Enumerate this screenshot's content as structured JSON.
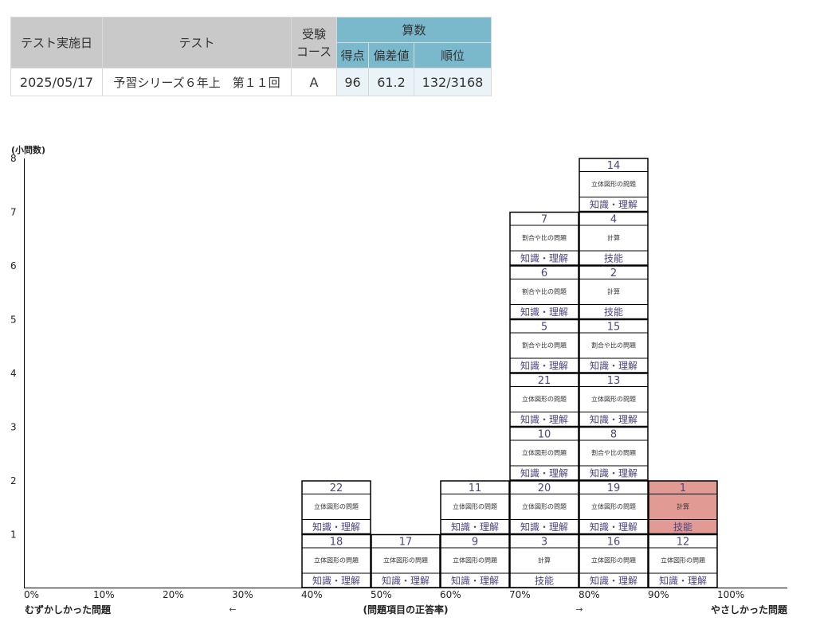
{
  "summary": {
    "headers": {
      "date": "テスト実施日",
      "test": "テスト",
      "course": "受験\nコース",
      "subject": "算数",
      "score": "得点",
      "deviation": "偏差値",
      "rank": "順位"
    },
    "row": {
      "date": "2025/05/17",
      "test": "予習シリーズ６年上　第１１回",
      "course": "A",
      "score": "96",
      "deviation": "61.2",
      "rank": "132/3168"
    }
  },
  "chart_data": {
    "type": "stacked-histogram",
    "ylabel": "(小問数)",
    "yticks": [
      "1",
      "2",
      "3",
      "4",
      "5",
      "6",
      "7",
      "8"
    ],
    "xticks": [
      "0%",
      "10%",
      "20%",
      "30%",
      "40%",
      "50%",
      "60%",
      "70%",
      "80%",
      "90%",
      "100%"
    ],
    "xlabel_left": "むずかしかった問題",
    "arrow_left": "←",
    "xlabel_center": "(問題項目の正答率)",
    "arrow_right": "→",
    "xlabel_right": "やさしかった問題",
    "highlight_color": "#e29b94",
    "columns": [
      {
        "bin": "40%-50%",
        "items": [
          {
            "num": "18",
            "category": "立体図形の問題",
            "skill": "知識・理解"
          },
          {
            "num": "22",
            "category": "立体図形の問題",
            "skill": "知識・理解"
          }
        ]
      },
      {
        "bin": "50%-60%",
        "items": [
          {
            "num": "17",
            "category": "立体図形の問題",
            "skill": "知識・理解"
          }
        ]
      },
      {
        "bin": "60%-70%",
        "items": [
          {
            "num": "9",
            "category": "立体図形の問題",
            "skill": "知識・理解"
          },
          {
            "num": "11",
            "category": "立体図形の問題",
            "skill": "知識・理解"
          }
        ]
      },
      {
        "bin": "70%-80%",
        "items": [
          {
            "num": "3",
            "category": "計算",
            "skill": "技能"
          },
          {
            "num": "20",
            "category": "立体図形の問題",
            "skill": "知識・理解"
          },
          {
            "num": "10",
            "category": "立体図形の問題",
            "skill": "知識・理解"
          },
          {
            "num": "21",
            "category": "立体図形の問題",
            "skill": "知識・理解"
          },
          {
            "num": "5",
            "category": "割合や比の問題",
            "skill": "知識・理解"
          },
          {
            "num": "6",
            "category": "割合や比の問題",
            "skill": "知識・理解"
          },
          {
            "num": "7",
            "category": "割合や比の問題",
            "skill": "知識・理解"
          }
        ]
      },
      {
        "bin": "80%-90%",
        "items": [
          {
            "num": "16",
            "category": "立体図形の問題",
            "skill": "知識・理解"
          },
          {
            "num": "19",
            "category": "立体図形の問題",
            "skill": "知識・理解"
          },
          {
            "num": "8",
            "category": "割合や比の問題",
            "skill": "知識・理解"
          },
          {
            "num": "13",
            "category": "立体図形の問題",
            "skill": "知識・理解"
          },
          {
            "num": "15",
            "category": "割合や比の問題",
            "skill": "知識・理解"
          },
          {
            "num": "2",
            "category": "計算",
            "skill": "技能"
          },
          {
            "num": "4",
            "category": "計算",
            "skill": "技能"
          },
          {
            "num": "14",
            "category": "立体図形の問題",
            "skill": "知識・理解"
          }
        ]
      },
      {
        "bin": "90%-100%",
        "items": [
          {
            "num": "12",
            "category": "立体図形の問題",
            "skill": "知識・理解"
          },
          {
            "num": "1",
            "category": "計算",
            "skill": "技能",
            "highlight": true
          }
        ]
      }
    ]
  }
}
